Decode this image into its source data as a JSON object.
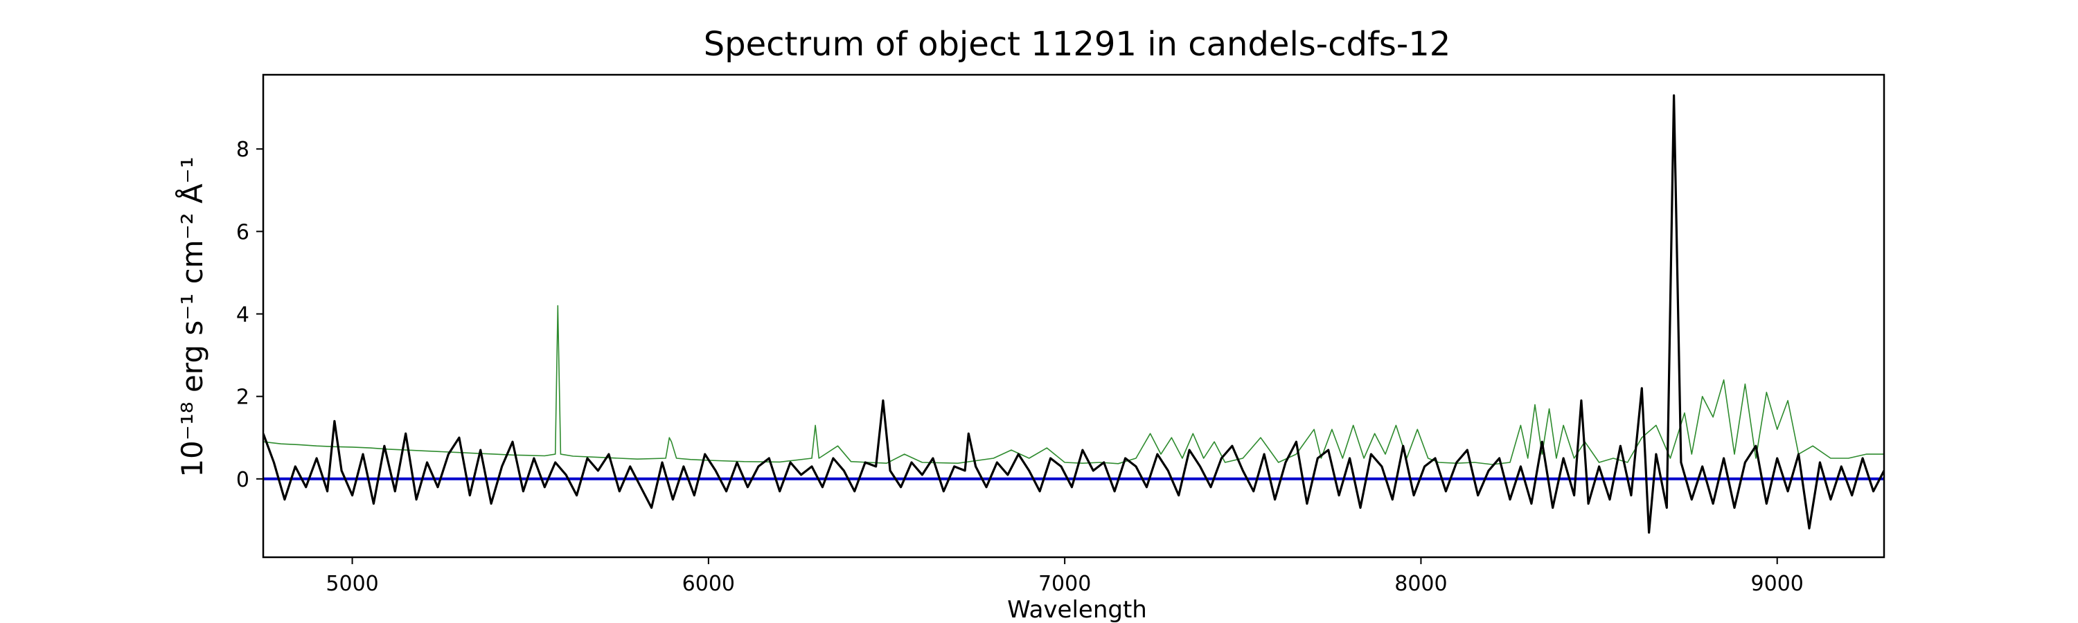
{
  "chart_data": {
    "type": "line",
    "title": "Spectrum of object 11291 in candels-cdfs-12",
    "xlabel": "Wavelength",
    "ylabel": "10⁻¹⁸ erg s⁻¹ cm⁻² Å⁻¹",
    "xlim": [
      4750,
      9300
    ],
    "ylim": [
      -1.9,
      9.8
    ],
    "x_ticks": [
      5000,
      6000,
      7000,
      8000,
      9000
    ],
    "y_ticks": [
      0,
      2,
      4,
      6,
      8
    ],
    "grid": false,
    "legend": "none",
    "colors": {
      "flux": "#000000",
      "sky": "#2e8b2e",
      "zero": "#0000cc"
    },
    "series": [
      {
        "key": "flux",
        "color": "#000000",
        "x": [
          4750,
          4780,
          4810,
          4840,
          4870,
          4900,
          4930,
          4950,
          4970,
          5000,
          5030,
          5060,
          5090,
          5120,
          5150,
          5180,
          5210,
          5240,
          5270,
          5300,
          5330,
          5360,
          5390,
          5420,
          5450,
          5480,
          5510,
          5540,
          5570,
          5600,
          5630,
          5660,
          5690,
          5720,
          5750,
          5780,
          5810,
          5840,
          5870,
          5900,
          5930,
          5960,
          5990,
          6020,
          6050,
          6080,
          6110,
          6140,
          6170,
          6200,
          6230,
          6260,
          6290,
          6320,
          6350,
          6380,
          6410,
          6440,
          6470,
          6490,
          6510,
          6540,
          6570,
          6600,
          6630,
          6660,
          6690,
          6720,
          6730,
          6750,
          6780,
          6810,
          6840,
          6870,
          6900,
          6930,
          6960,
          6990,
          7020,
          7050,
          7080,
          7110,
          7140,
          7170,
          7200,
          7230,
          7260,
          7290,
          7320,
          7350,
          7380,
          7410,
          7440,
          7470,
          7500,
          7530,
          7560,
          7590,
          7620,
          7650,
          7680,
          7710,
          7740,
          7770,
          7800,
          7830,
          7860,
          7890,
          7920,
          7950,
          7980,
          8010,
          8040,
          8070,
          8100,
          8130,
          8160,
          8190,
          8220,
          8250,
          8280,
          8310,
          8340,
          8370,
          8400,
          8430,
          8450,
          8470,
          8500,
          8530,
          8560,
          8590,
          8620,
          8640,
          8660,
          8690,
          8710,
          8730,
          8760,
          8790,
          8820,
          8850,
          8880,
          8910,
          8940,
          8970,
          9000,
          9030,
          9060,
          9090,
          9120,
          9150,
          9180,
          9210,
          9240,
          9270,
          9300
        ],
        "y": [
          1.1,
          0.4,
          -0.5,
          0.3,
          -0.2,
          0.5,
          -0.3,
          1.4,
          0.2,
          -0.4,
          0.6,
          -0.6,
          0.8,
          -0.3,
          1.1,
          -0.5,
          0.4,
          -0.2,
          0.6,
          1.0,
          -0.4,
          0.7,
          -0.6,
          0.3,
          0.9,
          -0.3,
          0.5,
          -0.2,
          0.4,
          0.1,
          -0.4,
          0.5,
          0.2,
          0.6,
          -0.3,
          0.3,
          -0.2,
          -0.7,
          0.4,
          -0.5,
          0.3,
          -0.4,
          0.6,
          0.2,
          -0.3,
          0.4,
          -0.2,
          0.3,
          0.5,
          -0.3,
          0.4,
          0.1,
          0.3,
          -0.2,
          0.5,
          0.2,
          -0.3,
          0.4,
          0.3,
          1.9,
          0.2,
          -0.2,
          0.4,
          0.1,
          0.5,
          -0.3,
          0.3,
          0.2,
          1.1,
          0.3,
          -0.2,
          0.4,
          0.1,
          0.6,
          0.2,
          -0.3,
          0.5,
          0.3,
          -0.2,
          0.7,
          0.2,
          0.4,
          -0.3,
          0.5,
          0.3,
          -0.2,
          0.6,
          0.2,
          -0.4,
          0.7,
          0.3,
          -0.2,
          0.5,
          0.8,
          0.2,
          -0.3,
          0.6,
          -0.5,
          0.4,
          0.9,
          -0.6,
          0.5,
          0.7,
          -0.4,
          0.5,
          -0.7,
          0.6,
          0.3,
          -0.5,
          0.8,
          -0.4,
          0.3,
          0.5,
          -0.3,
          0.4,
          0.7,
          -0.4,
          0.2,
          0.5,
          -0.5,
          0.3,
          -0.6,
          0.9,
          -0.7,
          0.5,
          -0.4,
          1.9,
          -0.6,
          0.3,
          -0.5,
          0.8,
          -0.4,
          2.2,
          -1.3,
          0.6,
          -0.7,
          9.3,
          0.4,
          -0.5,
          0.3,
          -0.6,
          0.5,
          -0.7,
          0.4,
          0.8,
          -0.6,
          0.5,
          -0.3,
          0.6,
          -1.2,
          0.4,
          -0.5,
          0.3,
          -0.4,
          0.5,
          -0.3,
          0.2
        ]
      },
      {
        "key": "sky",
        "color": "#2e8b2e",
        "x": [
          4750,
          4800,
          4850,
          4900,
          4950,
          5000,
          5050,
          5100,
          5150,
          5200,
          5250,
          5300,
          5350,
          5400,
          5450,
          5500,
          5540,
          5570,
          5577,
          5585,
          5620,
          5700,
          5800,
          5880,
          5890,
          5896,
          5910,
          5950,
          6000,
          6100,
          6200,
          6290,
          6300,
          6310,
          6363,
          6400,
          6450,
          6500,
          6550,
          6600,
          6700,
          6800,
          6850,
          6900,
          6950,
          7000,
          7050,
          7100,
          7150,
          7200,
          7240,
          7270,
          7300,
          7330,
          7360,
          7390,
          7420,
          7450,
          7500,
          7550,
          7600,
          7650,
          7700,
          7720,
          7750,
          7780,
          7810,
          7840,
          7870,
          7900,
          7930,
          7960,
          7990,
          8020,
          8050,
          8100,
          8150,
          8200,
          8250,
          8280,
          8300,
          8320,
          8340,
          8360,
          8380,
          8400,
          8430,
          8460,
          8500,
          8540,
          8580,
          8620,
          8660,
          8700,
          8740,
          8760,
          8790,
          8820,
          8850,
          8880,
          8910,
          8940,
          8970,
          9000,
          9030,
          9060,
          9100,
          9150,
          9200,
          9250,
          9300
        ],
        "y": [
          0.9,
          0.85,
          0.83,
          0.8,
          0.78,
          0.77,
          0.75,
          0.72,
          0.7,
          0.68,
          0.66,
          0.64,
          0.62,
          0.6,
          0.58,
          0.57,
          0.56,
          0.6,
          4.2,
          0.6,
          0.55,
          0.52,
          0.48,
          0.5,
          1.0,
          0.9,
          0.5,
          0.47,
          0.45,
          0.42,
          0.41,
          0.5,
          1.3,
          0.5,
          0.8,
          0.42,
          0.4,
          0.38,
          0.6,
          0.4,
          0.38,
          0.5,
          0.7,
          0.5,
          0.75,
          0.4,
          0.38,
          0.4,
          0.37,
          0.5,
          1.1,
          0.6,
          1.0,
          0.5,
          1.1,
          0.5,
          0.9,
          0.4,
          0.5,
          1.0,
          0.4,
          0.6,
          1.2,
          0.5,
          1.2,
          0.5,
          1.3,
          0.5,
          1.1,
          0.6,
          1.3,
          0.5,
          1.2,
          0.5,
          0.4,
          0.38,
          0.4,
          0.35,
          0.4,
          1.3,
          0.5,
          1.8,
          0.6,
          1.7,
          0.5,
          1.3,
          0.5,
          0.9,
          0.4,
          0.5,
          0.4,
          1.0,
          1.3,
          0.5,
          1.6,
          0.6,
          2.0,
          1.5,
          2.4,
          0.6,
          2.3,
          0.5,
          2.1,
          1.2,
          1.9,
          0.6,
          0.8,
          0.5,
          0.5,
          0.6,
          0.6
        ]
      },
      {
        "key": "zero",
        "color": "#0000cc",
        "x": [
          4750,
          9300
        ],
        "y": [
          0,
          0
        ]
      }
    ]
  }
}
